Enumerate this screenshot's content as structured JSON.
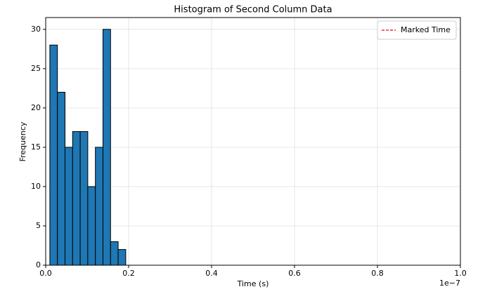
{
  "chart_data": {
    "type": "histogram",
    "title": "Histogram of Second Column Data",
    "x_label": "Time (s)",
    "y_label": "Frequency",
    "x_offset_label": "1e−7",
    "bins": [
      0.01,
      0.0283,
      0.0466,
      0.0649,
      0.0832,
      0.1015,
      0.1198,
      0.1381,
      0.1564,
      0.1747,
      0.193
    ],
    "values": [
      28,
      22,
      15,
      17,
      17,
      10,
      15,
      30,
      3,
      2
    ],
    "color": "#1f77b4",
    "edgecolor": "#000000",
    "xlim": [
      0,
      1
    ],
    "xticks": [
      {
        "value": 0,
        "label": "0.0"
      },
      0.2,
      0.4,
      0.6,
      0.8,
      {
        "value": 1,
        "label": "1.0"
      }
    ],
    "ylim": [
      0,
      31.5
    ],
    "yticks": [
      0,
      5,
      10,
      15,
      20,
      25,
      30
    ],
    "grid": true,
    "legend": {
      "position": "upper right",
      "items": [
        {
          "name": "Marked Time",
          "color": "#ff0000",
          "style": "dashed"
        }
      ]
    }
  }
}
